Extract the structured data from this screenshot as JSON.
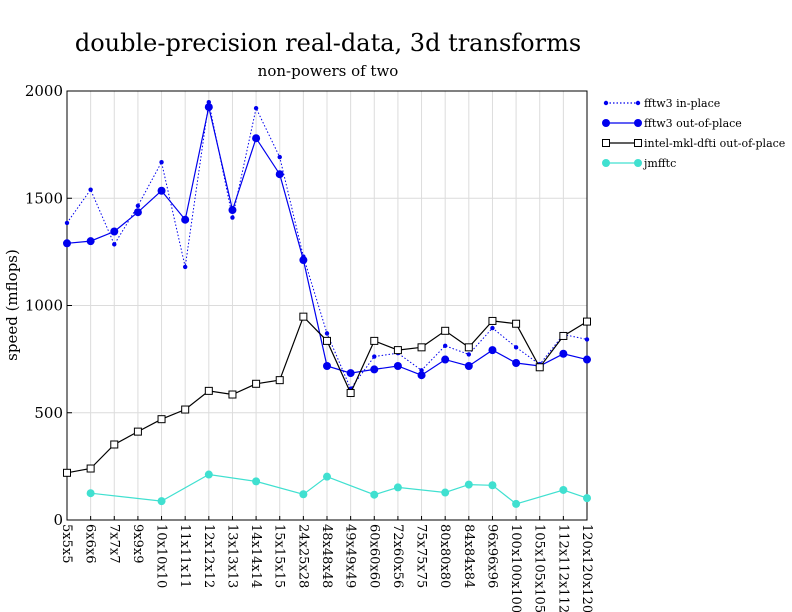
{
  "chart_data": {
    "type": "line",
    "title": "double-precision real-data, 3d transforms",
    "subtitle": "non-powers of two",
    "xlabel": "",
    "ylabel": "speed (mflops)",
    "ylim": [
      0,
      2000
    ],
    "yticks": [
      0,
      500,
      1000,
      1500,
      2000
    ],
    "grid": true,
    "legend_position": "right",
    "categories": [
      "5x5x5",
      "6x6x6",
      "7x7x7",
      "9x9x9",
      "10x10x10",
      "11x11x11",
      "12x12x12",
      "13x13x13",
      "14x14x14",
      "15x15x15",
      "24x25x28",
      "48x48x48",
      "49x49x49",
      "60x60x60",
      "72x60x56",
      "75x75x75",
      "80x80x80",
      "84x84x84",
      "96x96x96",
      "100x100x100",
      "105x105x105",
      "112x112x112",
      "120x120x120"
    ],
    "series": [
      {
        "name": "fftw3 in-place",
        "color": "#0000ee",
        "line": "dotted",
        "marker": "small-dot",
        "values": [
          1385,
          1540,
          1285,
          1465,
          1668,
          1180,
          1948,
          1410,
          1920,
          1692,
          1228,
          870,
          612,
          762,
          778,
          698,
          812,
          772,
          895,
          805,
          725,
          865,
          842
        ]
      },
      {
        "name": "fftw3 out-of-place",
        "color": "#0000ee",
        "line": "solid",
        "marker": "dot",
        "values": [
          1290,
          1300,
          1345,
          1435,
          1535,
          1400,
          1925,
          1445,
          1780,
          1612,
          1212,
          718,
          685,
          702,
          718,
          675,
          748,
          718,
          792,
          732,
          718,
          775,
          748
        ]
      },
      {
        "name": "intel-mkl-dfti out-of-place",
        "color": "#000000",
        "line": "solid",
        "marker": "open-square",
        "values": [
          220,
          240,
          352,
          412,
          470,
          515,
          602,
          585,
          635,
          652,
          948,
          835,
          592,
          835,
          792,
          805,
          882,
          805,
          928,
          915,
          712,
          858,
          925
        ]
      },
      {
        "name": "jmfftc",
        "color": "#40e0d0",
        "line": "solid",
        "marker": "dot",
        "values": [
          null,
          125,
          null,
          null,
          88,
          null,
          212,
          null,
          180,
          null,
          120,
          202,
          null,
          118,
          152,
          null,
          128,
          165,
          162,
          75,
          null,
          140,
          102
        ]
      }
    ]
  }
}
